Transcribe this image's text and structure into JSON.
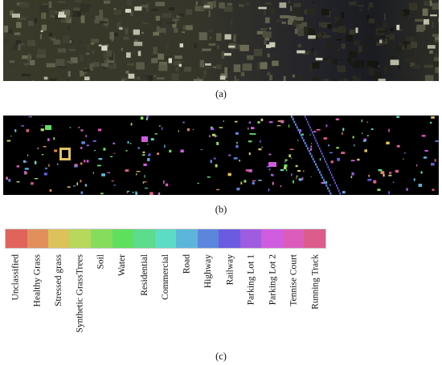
{
  "captions": {
    "a": "(a)",
    "b": "(b)",
    "c": "(c)"
  },
  "legend": {
    "classes": [
      {
        "label": "Unclassified",
        "color": "#e0645a"
      },
      {
        "label": "Healthy Grass",
        "color": "#e28f5b"
      },
      {
        "label": "Stressed grass",
        "color": "#dcc25a"
      },
      {
        "label": "Synthetic GrassTrees",
        "color": "#b6d95c"
      },
      {
        "label": "Soil",
        "color": "#86dd5c"
      },
      {
        "label": "Water",
        "color": "#5ee05e"
      },
      {
        "label": "Residential",
        "color": "#5cdc8c"
      },
      {
        "label": "Commercial",
        "color": "#5cdcc4"
      },
      {
        "label": "Road",
        "color": "#5cb6dc"
      },
      {
        "label": "Highway",
        "color": "#5c86dc"
      },
      {
        "label": "Railway",
        "color": "#6a5ce0"
      },
      {
        "label": "Parking Lot 1",
        "color": "#a05ce0"
      },
      {
        "label": "Parking Lot 2",
        "color": "#d05ce0"
      },
      {
        "label": "Tennise Court",
        "color": "#dc5cbc"
      },
      {
        "label": "Running Track",
        "color": "#dc5c8c"
      }
    ]
  },
  "colors": {
    "satellite_base": "#2f2f24",
    "map_background": "#000000"
  }
}
